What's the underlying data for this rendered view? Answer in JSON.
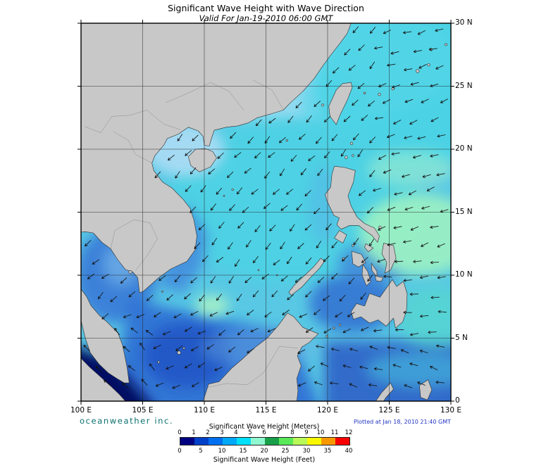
{
  "title": "Significant Wave Height with Wave Direction",
  "subtitle": "Valid For Jan-19-2010 06:00 GMT",
  "branding": "oceanweather inc.",
  "plotted": "Plotted at Jan 18, 2010 21:40 GMT",
  "axis": {
    "lon_labels": [
      "100 E",
      "105 E",
      "110 E",
      "115 E",
      "120 E",
      "125 E",
      "130 E"
    ],
    "lat_labels": [
      "30 N",
      "25 N",
      "20 N",
      "15 N",
      "10 N",
      "5 N",
      "0"
    ]
  },
  "legend": {
    "meters_title": "Significant Wave Height (Meters)",
    "feet_title": "Significant Wave Height (Feet)",
    "meter_ticks": [
      "0",
      "1",
      "2",
      "3",
      "4",
      "5",
      "6",
      "7",
      "8",
      "9",
      "10",
      "11",
      "12"
    ],
    "feet_ticks": [
      "0",
      "5",
      "10",
      "15",
      "20",
      "25",
      "30",
      "35",
      "40"
    ],
    "colors": [
      "#000080",
      "#0040c8",
      "#0070f0",
      "#00a8f8",
      "#00e0f8",
      "#90f8d0",
      "#18a048",
      "#58e858",
      "#b8f858",
      "#f8f800",
      "#f89800",
      "#f80000"
    ]
  },
  "map": {
    "ocean_base": "#58c8e4",
    "land_color": "#c8c8c8",
    "coast_color": "#2e2e2e",
    "grid_color": "#222222",
    "arrow_color": "#141414"
  },
  "chart_data": {
    "type": "heatmap",
    "title": "Significant Wave Height with Wave Direction",
    "subtitle": "Valid For Jan-19-2010 06:00 GMT",
    "region": {
      "lon_min_deg_e": 100,
      "lon_max_deg_e": 130,
      "lat_min_deg_n": 0,
      "lat_max_deg_n": 30
    },
    "grid_interval_deg": 5,
    "colorbar_meters": [
      0,
      1,
      2,
      3,
      4,
      5,
      6,
      7,
      8,
      9,
      10,
      11,
      12
    ],
    "colorbar_feet": [
      0,
      5,
      10,
      15,
      20,
      25,
      30,
      35,
      40
    ],
    "overlay": "wave direction arrows pointing predominantly southwest over the South China Sea"
  }
}
